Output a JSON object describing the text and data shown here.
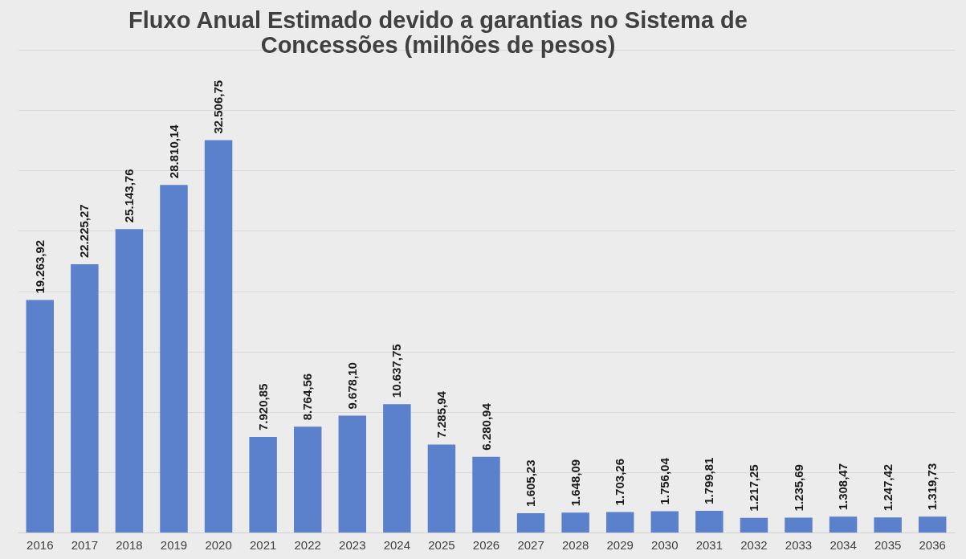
{
  "chart_data": {
    "type": "bar",
    "title": [
      "Fluxo Anual Estimado devido a garantias no Sistema  de",
      "Concessões (milhões de pesos)"
    ],
    "categories": [
      "2016",
      "2017",
      "2018",
      "2019",
      "2020",
      "2021",
      "2022",
      "2023",
      "2024",
      "2025",
      "2026",
      "2027",
      "2028",
      "2029",
      "2030",
      "2031",
      "2032",
      "2033",
      "2034",
      "2035",
      "2036"
    ],
    "values": [
      19263.92,
      22225.27,
      25143.76,
      28810.14,
      32506.75,
      7920.85,
      8764.56,
      9678.1,
      10637.75,
      7285.94,
      6280.94,
      1605.23,
      1648.09,
      1703.26,
      1756.04,
      1799.81,
      1217.25,
      1235.69,
      1308.47,
      1247.42,
      1319.73
    ],
    "value_labels": [
      "19.263,92",
      "22.225,27",
      "25.143,76",
      "28.810,14",
      "32.506,75",
      "7.920,85",
      "8.764,56",
      "9.678,10",
      "10.637,75",
      "7.285,94",
      "6.280,94",
      "1.605,23",
      "1.648,09",
      "1.703,26",
      "1.756,04",
      "1.799,81",
      "1.217,25",
      "1.235,69",
      "1.308,47",
      "1.247,42",
      "1.319,73"
    ],
    "color": "#5b80cc",
    "ylim": [
      0,
      40000
    ],
    "yticks": [
      {
        "value": 0,
        "label": null
      },
      {
        "value": 5000,
        "label": null
      },
      {
        "value": 10000,
        "label": null
      },
      {
        "value": 15000,
        "label": null
      },
      {
        "value": 20000,
        "label": null
      },
      {
        "value": 25000,
        "label": null
      },
      {
        "value": 30000,
        "label": null
      },
      {
        "value": 35000,
        "label": null
      },
      {
        "value": 40000,
        "label": null
      }
    ],
    "grid": "y",
    "tick_labels": "x"
  }
}
